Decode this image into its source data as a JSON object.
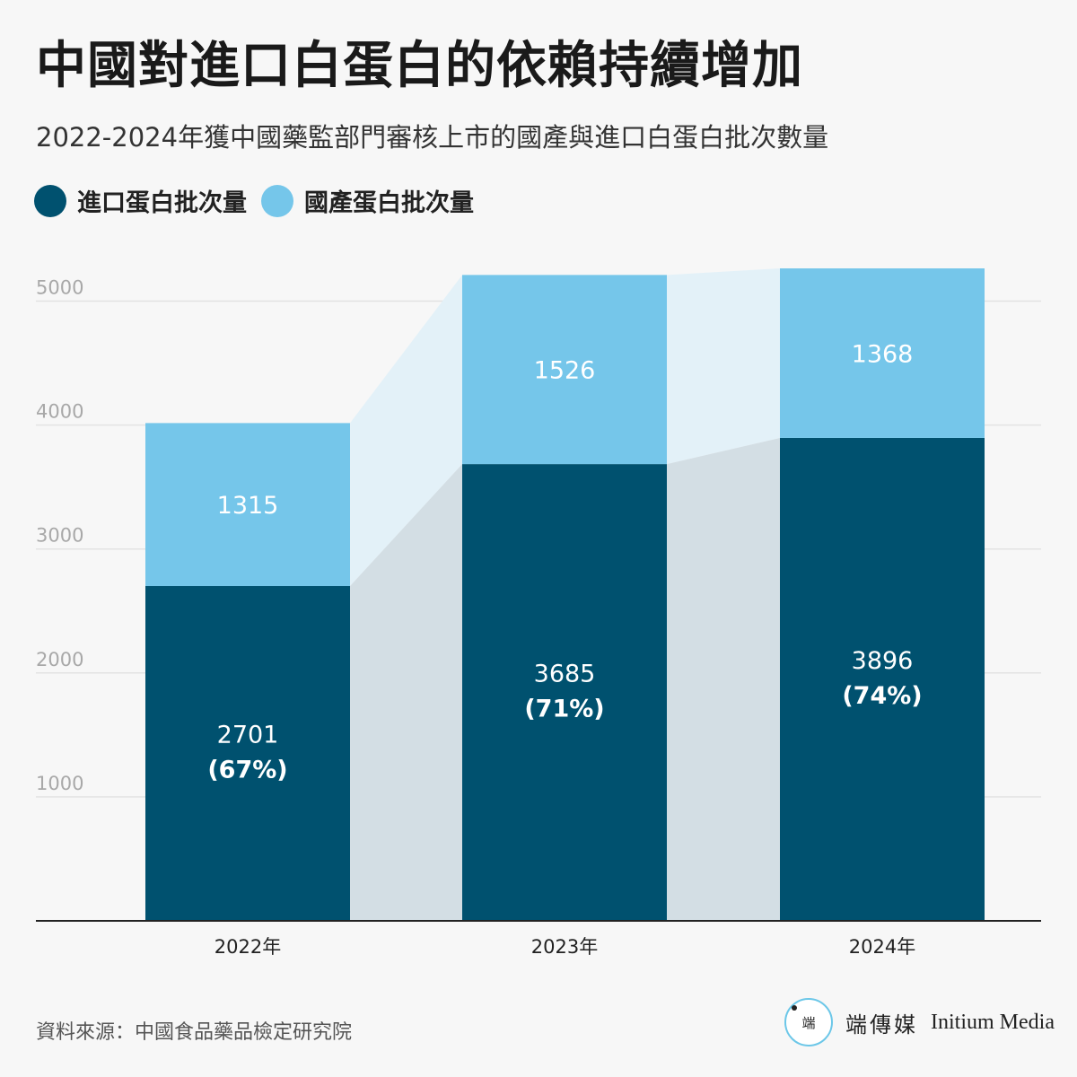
{
  "title": "中國對進口白蛋白的依賴持續增加",
  "subtitle": "2022-2024年獲中國藥監部門審核上市的國產與進口白蛋白批次數量",
  "source": "資料來源：中國食品藥品檢定研究院",
  "brand": {
    "logo_text": "端",
    "name_zh": "端傳媒",
    "name_en": "Initium Media"
  },
  "colors": {
    "imported": "#00516f",
    "domestic": "#75c6ea",
    "band_imported": "#d3dee4",
    "band_domestic": "#e3f1f8",
    "axis": "#222222",
    "grid": "#e3e3e3",
    "tick": "#a8a8a8"
  },
  "chart_data": {
    "type": "bar",
    "stacked": true,
    "categories": [
      "2022年",
      "2023年",
      "2024年"
    ],
    "series": [
      {
        "name": "進口蛋白批次量",
        "values": [
          2701,
          3685,
          3896
        ],
        "labels": [
          "2701",
          "3685",
          "3896"
        ],
        "share_labels": [
          "(67%)",
          "(71%)",
          "(74%)"
        ]
      },
      {
        "name": "國產蛋白批次量",
        "values": [
          1315,
          1526,
          1368
        ],
        "labels": [
          "1315",
          "1526",
          "1368"
        ]
      }
    ],
    "yticks": [
      "1000",
      "2000",
      "3000",
      "4000",
      "5000"
    ],
    "ylim": [
      0,
      5200
    ],
    "grid": true,
    "legend_position": "top-left"
  }
}
